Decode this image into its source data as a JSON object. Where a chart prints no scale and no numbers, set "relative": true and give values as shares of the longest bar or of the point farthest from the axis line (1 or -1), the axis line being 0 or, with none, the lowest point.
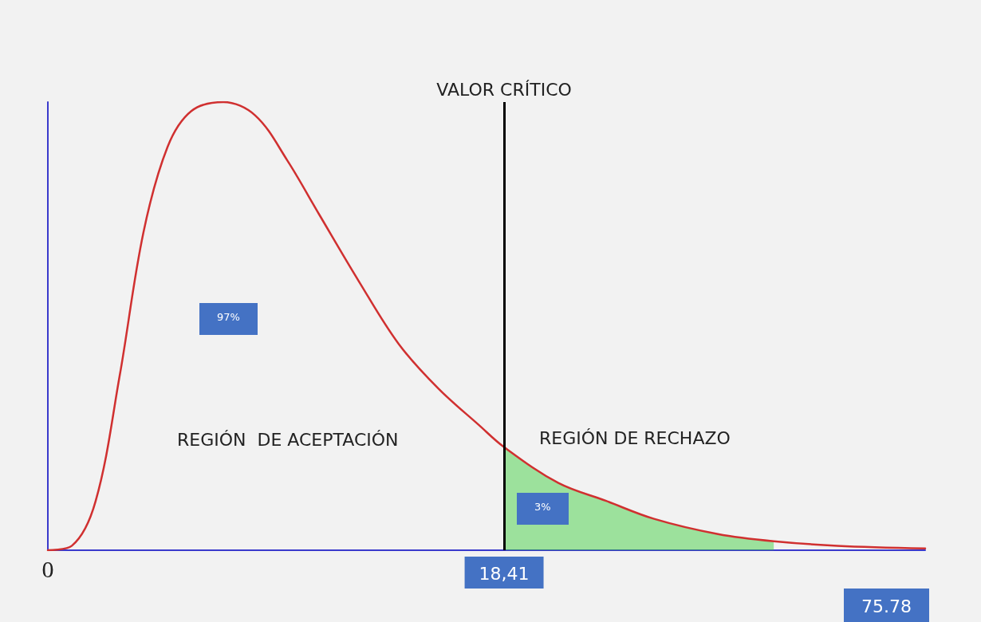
{
  "chart_data": {
    "type": "line",
    "relative": true,
    "x": [
      0,
      0.97,
      1.93,
      2.9,
      3.86,
      4.83,
      5.79,
      7.08,
      8.37,
      9.66,
      10.94,
      12.55,
      14.16,
      15.77,
      17.38,
      18.41,
      20.6,
      22.53,
      24.46,
      27.04,
      29.29,
      31.86,
      35.4
    ],
    "series": [
      {
        "color": "#d03030",
        "values": [
          0,
          0.01,
          0.11,
          0.39,
          0.71,
          0.9,
          0.98,
          1,
          0.97,
          0.87,
          0.75,
          0.6,
          0.46,
          0.36,
          0.28,
          0.23,
          0.15,
          0.11,
          0.07,
          0.036,
          0.02,
          0.01,
          0.004
        ]
      },
      {
        "type": "area",
        "color": "#33cc33",
        "x": [
          18.41,
          20.6,
          22.53,
          24.46,
          27.04,
          29.29
        ],
        "values": [
          0.23,
          0.15,
          0.11,
          0.07,
          0.036,
          0.02
        ]
      }
    ],
    "xlim": [
      0,
      35.4
    ],
    "xticks": [
      0,
      {
        "value": 18.41,
        "label": "18,41"
      }
    ],
    "tick_labels": "x",
    "ref_lines": [
      {
        "axis": "x",
        "value": 18.41,
        "label": "VALOR CRÍTICO",
        "color": "#000000"
      }
    ],
    "annotations": [
      "97%",
      "REGIÓN  DE ACEPTACIÓN",
      "REGIÓN DE RECHAZO",
      "3%",
      "75.78"
    ],
    "grid": false,
    "marker": "none",
    "line_style": "solid"
  }
}
